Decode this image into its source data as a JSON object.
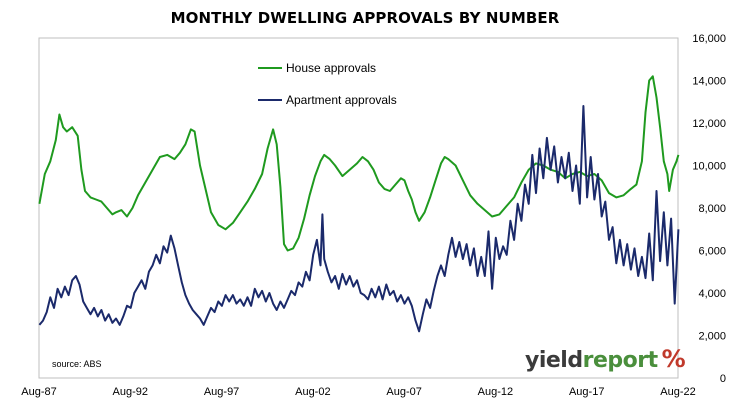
{
  "title": "MONTHLY DWELLING APPROVALS BY NUMBER",
  "logo": {
    "part1": "yield",
    "part2": "report",
    "symbol": "%"
  },
  "colors": {
    "house": "#1f9a1f",
    "apartment": "#1b2a6b",
    "frame": "#bfbfbf",
    "logo_word1": "#3b3b3b",
    "logo_word2": "#4a8f3c",
    "logo_symbol": "#c0392b"
  },
  "chart_data": {
    "type": "line",
    "title": "MONTHLY DWELLING APPROVALS BY NUMBER",
    "x_ticks": [
      "Aug-87",
      "Aug-92",
      "Aug-97",
      "Aug-02",
      "Aug-07",
      "Aug-12",
      "Aug-17",
      "Aug-22"
    ],
    "x_range": [
      1987.58,
      2022.58
    ],
    "y_ticks": [
      "0",
      "2,000",
      "4,000",
      "6,000",
      "8,000",
      "10,000",
      "12,000",
      "14,000",
      "16,000"
    ],
    "ylim": [
      0,
      16000
    ],
    "y_axis_side": "right",
    "grid": false,
    "legend_position": "top-center",
    "annotation": "source: ABS",
    "series": [
      {
        "name": "House approvals",
        "color": "#1f9a1f",
        "points": [
          [
            1987.6,
            8200
          ],
          [
            1987.9,
            9600
          ],
          [
            1988.2,
            10200
          ],
          [
            1988.5,
            11200
          ],
          [
            1988.7,
            12400
          ],
          [
            1988.9,
            11800
          ],
          [
            1989.1,
            11600
          ],
          [
            1989.4,
            11800
          ],
          [
            1989.7,
            11400
          ],
          [
            1989.9,
            9800
          ],
          [
            1990.1,
            8800
          ],
          [
            1990.4,
            8500
          ],
          [
            1990.7,
            8400
          ],
          [
            1991.0,
            8300
          ],
          [
            1991.3,
            8000
          ],
          [
            1991.6,
            7700
          ],
          [
            1991.8,
            7800
          ],
          [
            1992.1,
            7900
          ],
          [
            1992.4,
            7600
          ],
          [
            1992.7,
            8000
          ],
          [
            1993.0,
            8600
          ],
          [
            1993.4,
            9200
          ],
          [
            1993.8,
            9800
          ],
          [
            1994.2,
            10400
          ],
          [
            1994.6,
            10500
          ],
          [
            1995.0,
            10300
          ],
          [
            1995.3,
            10600
          ],
          [
            1995.6,
            11000
          ],
          [
            1995.9,
            11700
          ],
          [
            1996.1,
            11600
          ],
          [
            1996.4,
            10000
          ],
          [
            1996.7,
            8900
          ],
          [
            1997.0,
            7800
          ],
          [
            1997.4,
            7200
          ],
          [
            1997.8,
            7000
          ],
          [
            1998.2,
            7300
          ],
          [
            1998.6,
            7800
          ],
          [
            1999.0,
            8300
          ],
          [
            1999.4,
            8900
          ],
          [
            1999.8,
            9600
          ],
          [
            2000.1,
            10800
          ],
          [
            2000.4,
            11700
          ],
          [
            2000.6,
            11000
          ],
          [
            2000.8,
            9000
          ],
          [
            2001.0,
            6300
          ],
          [
            2001.2,
            6000
          ],
          [
            2001.5,
            6100
          ],
          [
            2001.8,
            6600
          ],
          [
            2002.1,
            7500
          ],
          [
            2002.4,
            8600
          ],
          [
            2002.7,
            9500
          ],
          [
            2003.0,
            10200
          ],
          [
            2003.2,
            10500
          ],
          [
            2003.5,
            10300
          ],
          [
            2003.8,
            10000
          ],
          [
            2004.2,
            9500
          ],
          [
            2004.6,
            9800
          ],
          [
            2005.0,
            10100
          ],
          [
            2005.3,
            10400
          ],
          [
            2005.6,
            10200
          ],
          [
            2005.9,
            9800
          ],
          [
            2006.2,
            9200
          ],
          [
            2006.5,
            8900
          ],
          [
            2006.8,
            8800
          ],
          [
            2007.1,
            9100
          ],
          [
            2007.4,
            9400
          ],
          [
            2007.6,
            9300
          ],
          [
            2007.8,
            8800
          ],
          [
            2008.0,
            8400
          ],
          [
            2008.2,
            7800
          ],
          [
            2008.4,
            7400
          ],
          [
            2008.7,
            7800
          ],
          [
            2009.0,
            8500
          ],
          [
            2009.3,
            9300
          ],
          [
            2009.6,
            10100
          ],
          [
            2009.8,
            10400
          ],
          [
            2010.0,
            10300
          ],
          [
            2010.4,
            10000
          ],
          [
            2010.8,
            9300
          ],
          [
            2011.2,
            8600
          ],
          [
            2011.6,
            8200
          ],
          [
            2012.0,
            7900
          ],
          [
            2012.4,
            7600
          ],
          [
            2012.8,
            7700
          ],
          [
            2013.2,
            8100
          ],
          [
            2013.6,
            8500
          ],
          [
            2014.0,
            9200
          ],
          [
            2014.4,
            9800
          ],
          [
            2014.8,
            10100
          ],
          [
            2015.2,
            10000
          ],
          [
            2015.6,
            9800
          ],
          [
            2016.0,
            9700
          ],
          [
            2016.4,
            9400
          ],
          [
            2016.8,
            9600
          ],
          [
            2017.2,
            9700
          ],
          [
            2017.6,
            9500
          ],
          [
            2018.0,
            9600
          ],
          [
            2018.4,
            9300
          ],
          [
            2018.8,
            8700
          ],
          [
            2019.2,
            8500
          ],
          [
            2019.6,
            8600
          ],
          [
            2020.0,
            8900
          ],
          [
            2020.3,
            9100
          ],
          [
            2020.6,
            10200
          ],
          [
            2020.8,
            12500
          ],
          [
            2021.0,
            14000
          ],
          [
            2021.2,
            14200
          ],
          [
            2021.4,
            13200
          ],
          [
            2021.6,
            11800
          ],
          [
            2021.8,
            10200
          ],
          [
            2022.0,
            9600
          ],
          [
            2022.1,
            8800
          ],
          [
            2022.3,
            9800
          ],
          [
            2022.5,
            10200
          ],
          [
            2022.6,
            10500
          ]
        ]
      },
      {
        "name": "Apartment approvals",
        "color": "#1b2a6b",
        "points": [
          [
            1987.6,
            2500
          ],
          [
            1987.8,
            2700
          ],
          [
            1988.0,
            3100
          ],
          [
            1988.2,
            3800
          ],
          [
            1988.4,
            3300
          ],
          [
            1988.6,
            4200
          ],
          [
            1988.8,
            3800
          ],
          [
            1989.0,
            4300
          ],
          [
            1989.2,
            3900
          ],
          [
            1989.4,
            4600
          ],
          [
            1989.6,
            4800
          ],
          [
            1989.8,
            4400
          ],
          [
            1990.0,
            3600
          ],
          [
            1990.2,
            3300
          ],
          [
            1990.4,
            3000
          ],
          [
            1990.6,
            3300
          ],
          [
            1990.8,
            2900
          ],
          [
            1991.0,
            3200
          ],
          [
            1991.2,
            2700
          ],
          [
            1991.4,
            3000
          ],
          [
            1991.6,
            2600
          ],
          [
            1991.8,
            2800
          ],
          [
            1992.0,
            2500
          ],
          [
            1992.2,
            2900
          ],
          [
            1992.4,
            3400
          ],
          [
            1992.6,
            3300
          ],
          [
            1992.8,
            4000
          ],
          [
            1993.0,
            4300
          ],
          [
            1993.2,
            4600
          ],
          [
            1993.4,
            4200
          ],
          [
            1993.6,
            5000
          ],
          [
            1993.8,
            5300
          ],
          [
            1994.0,
            5800
          ],
          [
            1994.2,
            5400
          ],
          [
            1994.4,
            6200
          ],
          [
            1994.6,
            5900
          ],
          [
            1994.8,
            6700
          ],
          [
            1995.0,
            6100
          ],
          [
            1995.2,
            5300
          ],
          [
            1995.4,
            4500
          ],
          [
            1995.6,
            3900
          ],
          [
            1995.8,
            3500
          ],
          [
            1996.0,
            3200
          ],
          [
            1996.2,
            3000
          ],
          [
            1996.4,
            2800
          ],
          [
            1996.6,
            2500
          ],
          [
            1996.8,
            2900
          ],
          [
            1997.0,
            3300
          ],
          [
            1997.2,
            3100
          ],
          [
            1997.4,
            3600
          ],
          [
            1997.6,
            3400
          ],
          [
            1997.8,
            3900
          ],
          [
            1998.0,
            3600
          ],
          [
            1998.2,
            3900
          ],
          [
            1998.4,
            3500
          ],
          [
            1998.6,
            3700
          ],
          [
            1998.8,
            3400
          ],
          [
            1999.0,
            3800
          ],
          [
            1999.2,
            3400
          ],
          [
            1999.4,
            4200
          ],
          [
            1999.6,
            3800
          ],
          [
            1999.8,
            4100
          ],
          [
            2000.0,
            3600
          ],
          [
            2000.2,
            4000
          ],
          [
            2000.4,
            3500
          ],
          [
            2000.6,
            3200
          ],
          [
            2000.8,
            3600
          ],
          [
            2001.0,
            3300
          ],
          [
            2001.2,
            3700
          ],
          [
            2001.4,
            4100
          ],
          [
            2001.6,
            3900
          ],
          [
            2001.8,
            4500
          ],
          [
            2002.0,
            4300
          ],
          [
            2002.2,
            5000
          ],
          [
            2002.4,
            4600
          ],
          [
            2002.6,
            5800
          ],
          [
            2002.8,
            6500
          ],
          [
            2003.0,
            5300
          ],
          [
            2003.1,
            7700
          ],
          [
            2003.2,
            5600
          ],
          [
            2003.4,
            5000
          ],
          [
            2003.6,
            4500
          ],
          [
            2003.8,
            4800
          ],
          [
            2004.0,
            4200
          ],
          [
            2004.2,
            4900
          ],
          [
            2004.4,
            4400
          ],
          [
            2004.6,
            4800
          ],
          [
            2004.8,
            4300
          ],
          [
            2005.0,
            4600
          ],
          [
            2005.2,
            4000
          ],
          [
            2005.4,
            3900
          ],
          [
            2005.6,
            3700
          ],
          [
            2005.8,
            4200
          ],
          [
            2006.0,
            3800
          ],
          [
            2006.2,
            4300
          ],
          [
            2006.4,
            3700
          ],
          [
            2006.6,
            4400
          ],
          [
            2006.8,
            3900
          ],
          [
            2007.0,
            4100
          ],
          [
            2007.2,
            3600
          ],
          [
            2007.4,
            3900
          ],
          [
            2007.6,
            3500
          ],
          [
            2007.8,
            3800
          ],
          [
            2008.0,
            3400
          ],
          [
            2008.2,
            2700
          ],
          [
            2008.4,
            2200
          ],
          [
            2008.6,
            3000
          ],
          [
            2008.8,
            3700
          ],
          [
            2009.0,
            3300
          ],
          [
            2009.2,
            4100
          ],
          [
            2009.4,
            4800
          ],
          [
            2009.6,
            5300
          ],
          [
            2009.8,
            4800
          ],
          [
            2010.0,
            5800
          ],
          [
            2010.2,
            6600
          ],
          [
            2010.4,
            5700
          ],
          [
            2010.6,
            6400
          ],
          [
            2010.8,
            5600
          ],
          [
            2011.0,
            6300
          ],
          [
            2011.2,
            5300
          ],
          [
            2011.4,
            6100
          ],
          [
            2011.6,
            4800
          ],
          [
            2011.8,
            5700
          ],
          [
            2012.0,
            4800
          ],
          [
            2012.2,
            6900
          ],
          [
            2012.4,
            4200
          ],
          [
            2012.6,
            6600
          ],
          [
            2012.8,
            5600
          ],
          [
            2013.0,
            6200
          ],
          [
            2013.2,
            5800
          ],
          [
            2013.4,
            7400
          ],
          [
            2013.6,
            6500
          ],
          [
            2013.8,
            8200
          ],
          [
            2014.0,
            7400
          ],
          [
            2014.2,
            9100
          ],
          [
            2014.4,
            8200
          ],
          [
            2014.6,
            10500
          ],
          [
            2014.8,
            8700
          ],
          [
            2015.0,
            10800
          ],
          [
            2015.2,
            9400
          ],
          [
            2015.4,
            11300
          ],
          [
            2015.6,
            9800
          ],
          [
            2015.8,
            10900
          ],
          [
            2016.0,
            9200
          ],
          [
            2016.2,
            10400
          ],
          [
            2016.4,
            9400
          ],
          [
            2016.6,
            10600
          ],
          [
            2016.8,
            8800
          ],
          [
            2017.0,
            10000
          ],
          [
            2017.2,
            8200
          ],
          [
            2017.4,
            12800
          ],
          [
            2017.6,
            8500
          ],
          [
            2017.8,
            10400
          ],
          [
            2018.0,
            8400
          ],
          [
            2018.2,
            9600
          ],
          [
            2018.4,
            7600
          ],
          [
            2018.6,
            8300
          ],
          [
            2018.8,
            6500
          ],
          [
            2019.0,
            7100
          ],
          [
            2019.2,
            5400
          ],
          [
            2019.4,
            6500
          ],
          [
            2019.6,
            5300
          ],
          [
            2019.8,
            6300
          ],
          [
            2020.0,
            5100
          ],
          [
            2020.2,
            6100
          ],
          [
            2020.4,
            4800
          ],
          [
            2020.6,
            5700
          ],
          [
            2020.8,
            4700
          ],
          [
            2021.0,
            6800
          ],
          [
            2021.2,
            4600
          ],
          [
            2021.4,
            8800
          ],
          [
            2021.6,
            5500
          ],
          [
            2021.8,
            7800
          ],
          [
            2022.0,
            5300
          ],
          [
            2022.2,
            7500
          ],
          [
            2022.4,
            3500
          ],
          [
            2022.6,
            7000
          ]
        ]
      }
    ]
  }
}
